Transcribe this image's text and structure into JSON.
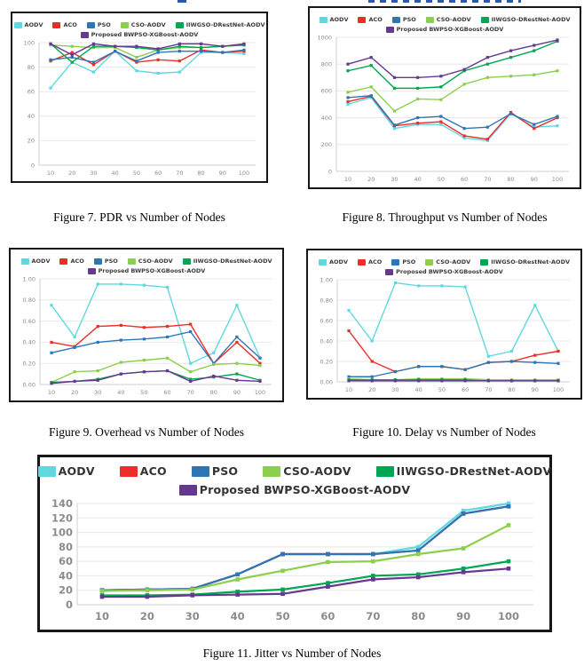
{
  "page": {
    "captions": {
      "fig7": "Figure 7. PDR vs Number of Nodes",
      "fig8": "Figure 8. Throughput vs Number of Nodes",
      "fig9": "Figure 9. Overhead vs Number of Nodes",
      "fig10": "Figure 10. Delay vs Number of Nodes",
      "fig11": "Figure 11. Jitter vs Number of Nodes"
    }
  },
  "colors": {
    "aodv": "#5fd8e0",
    "aco": "#ee2d2a",
    "pso": "#2e75b6",
    "cso_aodv": "#8ccf4d",
    "iiwgso": "#00a651",
    "proposed": "#66388f",
    "grid": "#e8e8e8",
    "axis": "#cfcfcf",
    "tick_text": "#8b8b8b",
    "panel_border": "#161616"
  },
  "chart_data": [
    {
      "figure": "Figure 7",
      "title": "Figure 7. PDR vs Number of Nodes",
      "metric": "PDR",
      "type": "line",
      "x": [
        10,
        20,
        30,
        40,
        50,
        60,
        70,
        80,
        90,
        100
      ],
      "ylim": [
        0,
        100
      ],
      "yticks": [
        0,
        20,
        40,
        60,
        80,
        100
      ],
      "decimals": 0,
      "grid": true,
      "legend_position": "top",
      "series": [
        {
          "name": "AODV",
          "color": "#5fd8e0",
          "values": [
            63,
            84,
            76,
            93,
            77,
            75,
            76,
            92,
            92,
            91
          ]
        },
        {
          "name": "ACO",
          "color": "#ee2d2a",
          "values": [
            85,
            92,
            82,
            93,
            84,
            86,
            85,
            94,
            92,
            93
          ]
        },
        {
          "name": "PSO",
          "color": "#2e75b6",
          "values": [
            86,
            88,
            84,
            93,
            85,
            92,
            93,
            93,
            92,
            94
          ]
        },
        {
          "name": "CSO-AODV",
          "color": "#8ccf4d",
          "values": [
            98,
            97,
            96,
            96,
            88,
            94,
            96,
            96,
            97,
            98
          ]
        },
        {
          "name": "IIWGSO-DRestNet-AODV",
          "color": "#00a651",
          "values": [
            99,
            84,
            97,
            97,
            96,
            94,
            97,
            96,
            97,
            98
          ]
        },
        {
          "name": "Proposed BWPSO-XGBoost-AODV",
          "color": "#66388f",
          "values": [
            99,
            90,
            99,
            97,
            97,
            95,
            99,
            99,
            97,
            99
          ]
        }
      ]
    },
    {
      "figure": "Figure 8",
      "title": "Figure 8. Throughput vs Number of Nodes",
      "metric": "Throughput",
      "type": "line",
      "x": [
        10,
        20,
        30,
        40,
        50,
        60,
        70,
        80,
        90,
        100
      ],
      "ylim": [
        0,
        1000
      ],
      "yticks": [
        0,
        200,
        400,
        600,
        800,
        1000
      ],
      "decimals": 0,
      "grid": true,
      "legend_position": "top",
      "series": [
        {
          "name": "AODV",
          "color": "#5fd8e0",
          "values": [
            500,
            550,
            320,
            350,
            350,
            250,
            230,
            430,
            330,
            340
          ]
        },
        {
          "name": "ACO",
          "color": "#ee2d2a",
          "values": [
            520,
            560,
            340,
            360,
            370,
            265,
            240,
            440,
            320,
            400
          ]
        },
        {
          "name": "PSO",
          "color": "#2e75b6",
          "values": [
            550,
            565,
            345,
            400,
            410,
            320,
            330,
            430,
            350,
            410
          ]
        },
        {
          "name": "CSO-AODV",
          "color": "#8ccf4d",
          "values": [
            590,
            630,
            450,
            540,
            535,
            650,
            700,
            710,
            720,
            750
          ]
        },
        {
          "name": "IIWGSO-DRestNet-AODV",
          "color": "#00a651",
          "values": [
            750,
            790,
            620,
            620,
            630,
            750,
            800,
            850,
            900,
            970
          ]
        },
        {
          "name": "Proposed BWPSO-XGBoost-AODV",
          "color": "#66388f",
          "values": [
            800,
            850,
            700,
            700,
            710,
            760,
            850,
            900,
            940,
            980
          ]
        }
      ]
    },
    {
      "figure": "Figure 9",
      "title": "Figure 9. Overhead vs Number of Nodes",
      "metric": "Overhead",
      "type": "line",
      "x": [
        10,
        20,
        30,
        40,
        50,
        60,
        70,
        80,
        90,
        100
      ],
      "ylim": [
        0,
        1
      ],
      "yticks": [
        0,
        0.2,
        0.4,
        0.6,
        0.8,
        1
      ],
      "decimals": 2,
      "grid": true,
      "legend_position": "top",
      "series": [
        {
          "name": "AODV",
          "color": "#5fd8e0",
          "values": [
            0.75,
            0.45,
            0.95,
            0.95,
            0.94,
            0.92,
            0.2,
            0.3,
            0.75,
            0.25
          ]
        },
        {
          "name": "ACO",
          "color": "#ee2d2a",
          "values": [
            0.4,
            0.36,
            0.55,
            0.56,
            0.54,
            0.55,
            0.57,
            0.2,
            0.4,
            0.2
          ]
        },
        {
          "name": "PSO",
          "color": "#2e75b6",
          "values": [
            0.3,
            0.35,
            0.4,
            0.42,
            0.43,
            0.45,
            0.5,
            0.2,
            0.45,
            0.25
          ]
        },
        {
          "name": "CSO-AODV",
          "color": "#8ccf4d",
          "values": [
            0.02,
            0.12,
            0.13,
            0.21,
            0.23,
            0.25,
            0.12,
            0.19,
            0.2,
            0.18
          ]
        },
        {
          "name": "IIWGSO-DRestNet-AODV",
          "color": "#00a651",
          "values": [
            0.02,
            0.03,
            0.05,
            0.1,
            0.12,
            0.13,
            0.05,
            0.07,
            0.1,
            0.04
          ]
        },
        {
          "name": "Proposed BWPSO-XGBoost-AODV",
          "color": "#66388f",
          "values": [
            0.01,
            0.03,
            0.04,
            0.1,
            0.12,
            0.13,
            0.03,
            0.08,
            0.04,
            0.03
          ]
        }
      ]
    },
    {
      "figure": "Figure 10",
      "title": "Figure 10. Delay vs Number of Nodes",
      "metric": "Delay",
      "type": "line",
      "x": [
        10,
        20,
        30,
        40,
        50,
        60,
        70,
        80,
        90,
        100
      ],
      "ylim": [
        0,
        1
      ],
      "yticks": [
        0,
        0.2,
        0.4,
        0.6,
        0.8,
        1
      ],
      "decimals": 2,
      "grid": true,
      "legend_position": "top",
      "series": [
        {
          "name": "AODV",
          "color": "#5fd8e0",
          "values": [
            0.7,
            0.4,
            0.97,
            0.94,
            0.94,
            0.93,
            0.25,
            0.3,
            0.75,
            0.3
          ]
        },
        {
          "name": "ACO",
          "color": "#ee2d2a",
          "values": [
            0.5,
            0.2,
            0.1,
            0.15,
            0.15,
            0.12,
            0.19,
            0.2,
            0.26,
            0.3
          ]
        },
        {
          "name": "PSO",
          "color": "#2e75b6",
          "values": [
            0.05,
            0.05,
            0.1,
            0.15,
            0.15,
            0.12,
            0.19,
            0.2,
            0.19,
            0.18
          ]
        },
        {
          "name": "CSO-AODV",
          "color": "#8ccf4d",
          "values": [
            0.03,
            0.02,
            0.02,
            0.03,
            0.03,
            0.03,
            0.02,
            0.02,
            0.02,
            0.02
          ]
        },
        {
          "name": "IIWGSO-DRestNet-AODV",
          "color": "#00a651",
          "values": [
            0.02,
            0.02,
            0.02,
            0.02,
            0.02,
            0.02,
            0.01,
            0.01,
            0.01,
            0.01
          ]
        },
        {
          "name": "Proposed BWPSO-XGBoost-AODV",
          "color": "#66388f",
          "values": [
            0.01,
            0.01,
            0.01,
            0.01,
            0.01,
            0.01,
            0.01,
            0.01,
            0.01,
            0.01
          ]
        }
      ]
    },
    {
      "figure": "Figure 11",
      "title": "Figure 11. Jitter vs Number of Nodes",
      "metric": "Jitter",
      "type": "line",
      "x": [
        10,
        20,
        30,
        40,
        50,
        60,
        70,
        80,
        90,
        100
      ],
      "ylim": [
        0,
        140
      ],
      "yticks": [
        0,
        20,
        40,
        60,
        80,
        100,
        120,
        140
      ],
      "decimals": 0,
      "grid": true,
      "legend_position": "top",
      "series": [
        {
          "name": "AODV",
          "color": "#5fd8e0",
          "values": [
            20,
            21,
            22,
            42,
            70,
            70,
            70,
            80,
            130,
            140
          ]
        },
        {
          "name": "ACO",
          "color": "#ee2d2a",
          "values": [
            20,
            21,
            22,
            42,
            70,
            70,
            70,
            75,
            126,
            136
          ]
        },
        {
          "name": "PSO",
          "color": "#2e75b6",
          "values": [
            20,
            21,
            22,
            42,
            70,
            70,
            70,
            75,
            126,
            136
          ]
        },
        {
          "name": "CSO-AODV",
          "color": "#8ccf4d",
          "values": [
            19,
            20,
            21,
            35,
            47,
            59,
            60,
            70,
            78,
            110
          ]
        },
        {
          "name": "IIWGSO-DRestNet-AODV",
          "color": "#00a651",
          "values": [
            13,
            13,
            14,
            18,
            21,
            30,
            40,
            42,
            50,
            60
          ]
        },
        {
          "name": "Proposed BWPSO-XGBoost-AODV",
          "color": "#66388f",
          "values": [
            11,
            11,
            13,
            14,
            15,
            25,
            35,
            38,
            45,
            50
          ]
        }
      ]
    }
  ]
}
